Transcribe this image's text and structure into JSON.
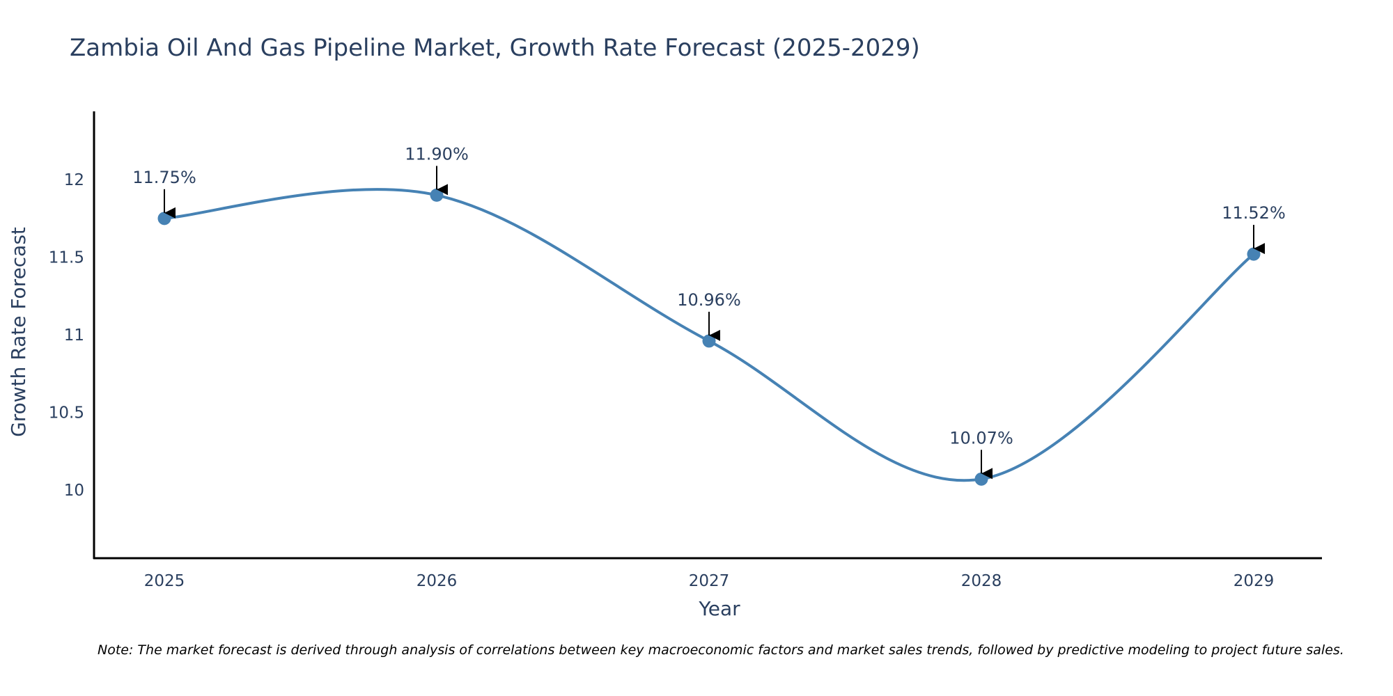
{
  "chart_data": {
    "type": "line",
    "title": "Zambia Oil And Gas Pipeline Market, Growth Rate Forecast (2025-2029)",
    "xlabel": "Year",
    "ylabel": "Growth Rate Forecast",
    "categories": [
      "2025",
      "2026",
      "2027",
      "2028",
      "2029"
    ],
    "series": [
      {
        "name": "Growth Rate Forecast",
        "values": [
          11.75,
          11.9,
          10.96,
          10.07,
          11.52
        ],
        "labels": [
          "11.75%",
          "11.90%",
          "10.96%",
          "10.07%",
          "11.52%"
        ]
      }
    ],
    "ylim": [
      9.56,
      12.44
    ],
    "yticks": [
      10,
      10.5,
      11,
      11.5,
      12
    ],
    "ytick_labels": [
      "10",
      "10.5",
      "11",
      "11.5",
      "12"
    ],
    "grid": false,
    "line_shape": "spline",
    "note": "Note: The market forecast is derived through analysis of correlations between key macroeconomic factors and market sales trends, followed by predictive modeling to project future sales."
  },
  "colors": {
    "line": "#4682b4",
    "marker": "#4682b4",
    "text": "#2a3f5f",
    "axis": "#000000",
    "arrow": "#000000",
    "background": "#ffffff"
  }
}
